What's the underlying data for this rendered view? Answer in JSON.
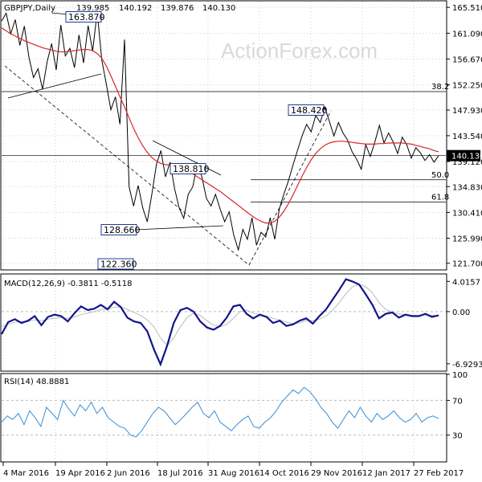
{
  "watermark": "ActionForex.com",
  "chart_data": [
    {
      "type": "line",
      "panel": "price",
      "title": "GBPJPY,Daily",
      "ohlc": [
        "139.985",
        "140.192",
        "139.876",
        "140.130"
      ],
      "y_ticks": [
        165.51,
        161.09,
        156.67,
        152.25,
        147.93,
        143.54,
        139.12,
        134.83,
        130.41,
        125.99,
        121.7
      ],
      "y_tick_labels": [
        "165.510",
        "161.090",
        "156.670",
        "152.250",
        "147.930",
        "143.540",
        "139.120",
        "134.830",
        "130.410",
        "125.990",
        "121.700"
      ],
      "ylim": [
        120.7,
        166.5
      ],
      "current_price": 140.13,
      "current_price_label": "140.130",
      "series": [
        {
          "name": "price",
          "color": "#000000",
          "values": [
            163.2,
            164.5,
            161.0,
            163.4,
            159.0,
            162.3,
            157.0,
            153.5,
            155.0,
            151.5,
            156.2,
            159.3,
            154.8,
            162.5,
            157.2,
            158.5,
            155.2,
            160.8,
            156.0,
            162.4,
            158.0,
            164.8,
            156.5,
            152.4,
            148.0,
            150.2,
            145.5,
            160.0,
            134.8,
            131.5,
            135.0,
            131.2,
            128.8,
            133.5,
            138.6,
            141.0,
            136.5,
            139.0,
            134.5,
            131.2,
            129.4,
            133.5,
            134.8,
            138.8,
            136.5,
            132.8,
            131.5,
            133.5,
            131.0,
            128.8,
            130.5,
            126.5,
            124.0,
            127.5,
            125.8,
            129.5,
            124.8,
            127.0,
            126.2,
            129.5,
            125.8,
            131.0,
            133.5,
            135.8,
            138.5,
            141.0,
            143.5,
            145.5,
            144.2,
            147.0,
            145.8,
            148.4,
            146.0,
            143.5,
            145.8,
            144.0,
            142.8,
            140.8,
            139.5,
            137.8,
            142.0,
            140.0,
            142.5,
            145.3,
            142.3,
            144.0,
            142.5,
            140.5,
            143.3,
            142.0,
            139.7,
            141.5,
            140.6,
            139.3,
            140.3,
            139.0,
            140.13
          ]
        },
        {
          "name": "MA",
          "color": "#d62728",
          "values": [
            162.0,
            161.5,
            161.0,
            160.6,
            160.2,
            159.8,
            159.5,
            159.2,
            158.9,
            158.6,
            158.4,
            158.2,
            158.0,
            157.9,
            157.9,
            158.0,
            158.1,
            158.2,
            158.3,
            158.3,
            158.1,
            157.6,
            156.8,
            155.5,
            153.8,
            152.0,
            150.2,
            148.5,
            146.6,
            144.8,
            143.2,
            141.8,
            140.7,
            139.8,
            139.2,
            138.8,
            138.6,
            138.5,
            138.4,
            138.2,
            137.9,
            137.5,
            137.0,
            136.5,
            136.0,
            135.5,
            135.0,
            134.5,
            134.0,
            133.4,
            132.8,
            132.2,
            131.6,
            131.0,
            130.4,
            129.8,
            129.3,
            128.9,
            128.6,
            128.6,
            128.9,
            129.6,
            130.6,
            131.9,
            133.4,
            135.0,
            136.6,
            138.1,
            139.4,
            140.5,
            141.3,
            141.9,
            142.3,
            142.5,
            142.6,
            142.6,
            142.5,
            142.4,
            142.3,
            142.2,
            142.1,
            142.1,
            142.1,
            142.2,
            142.2,
            142.3,
            142.3,
            142.3,
            142.3,
            142.2,
            142.1,
            141.9,
            141.7,
            141.5,
            141.3,
            141.0,
            140.8
          ]
        }
      ],
      "levels": [
        {
          "label": "38.2",
          "value": 151.1
        },
        {
          "label": "50.0",
          "value": 136.0
        },
        {
          "label": "61.8",
          "value": 132.2
        }
      ],
      "annotations": [
        {
          "text": "163.870",
          "value": 163.87
        },
        {
          "text": "148.420",
          "value": 148.42
        },
        {
          "text": "138.810",
          "value": 138.81
        },
        {
          "text": "128.660",
          "value": 128.66
        },
        {
          "text": "122.360",
          "value": 122.36
        }
      ],
      "x_tick_labels": [
        "4 Mar 2016",
        "19 Apr 2016",
        "2 Jun 2016",
        "18 Jul 2016",
        "31 Aug 2016",
        "14 Oct 2016",
        "29 Nov 2016",
        "12 Jan 2017",
        "27 Feb 2017"
      ],
      "grid": true
    },
    {
      "type": "line",
      "panel": "macd",
      "title": "MACD(12,26,9) -0.3811 -0.5118",
      "y_tick_labels": [
        "4.0157",
        "0.00",
        "-6.9293"
      ],
      "y_ticks": [
        4.0157,
        0.0,
        -6.9293
      ],
      "ylim": [
        -7.8,
        4.9
      ],
      "series": [
        {
          "name": "MACD",
          "color": "#14148c",
          "values": [
            -3.0,
            -1.4,
            -1.0,
            -1.5,
            -1.2,
            -0.6,
            -1.8,
            -0.7,
            -0.4,
            -0.6,
            -1.3,
            -0.2,
            0.7,
            0.2,
            0.4,
            0.9,
            0.3,
            1.3,
            0.6,
            -0.8,
            -1.3,
            -1.5,
            -2.6,
            -5.0,
            -7.0,
            -4.5,
            -1.5,
            0.2,
            0.5,
            0.0,
            -1.3,
            -2.1,
            -2.4,
            -1.9,
            -0.8,
            0.7,
            0.9,
            -0.3,
            -0.9,
            -0.4,
            -0.7,
            -1.5,
            -1.2,
            -1.9,
            -1.7,
            -1.2,
            -0.9,
            -1.6,
            -0.6,
            0.3,
            1.6,
            2.9,
            4.3,
            4.0,
            3.6,
            2.3,
            0.9,
            -0.9,
            -0.3,
            -0.1,
            -0.8,
            -0.4,
            -0.6,
            -0.6,
            -0.3,
            -0.7,
            -0.5
          ]
        },
        {
          "name": "Signal",
          "color": "#bbbbbb",
          "values": [
            -2.0,
            -1.7,
            -1.4,
            -1.3,
            -1.3,
            -1.1,
            -1.2,
            -1.0,
            -0.9,
            -0.8,
            -0.9,
            -0.7,
            -0.4,
            -0.2,
            0.0,
            0.3,
            0.3,
            0.6,
            0.6,
            0.3,
            -0.1,
            -0.5,
            -1.1,
            -2.0,
            -3.5,
            -4.5,
            -3.5,
            -2.0,
            -0.8,
            -0.2,
            -0.5,
            -1.2,
            -1.8,
            -2.0,
            -1.7,
            -0.9,
            0.0,
            0.2,
            -0.2,
            -0.4,
            -0.6,
            -0.9,
            -1.1,
            -1.4,
            -1.6,
            -1.5,
            -1.2,
            -1.2,
            -1.0,
            -0.6,
            0.2,
            1.2,
            2.4,
            3.3,
            3.6,
            3.3,
            2.5,
            1.2,
            0.3,
            -0.1,
            -0.3,
            -0.4,
            -0.5,
            -0.5,
            -0.4,
            -0.5,
            -0.5
          ]
        }
      ],
      "grid": true
    },
    {
      "type": "line",
      "panel": "rsi",
      "title": "RSI(14) 48.8881",
      "y_tick_labels": [
        "100",
        "70",
        "30",
        "0"
      ],
      "y_ticks": [
        100,
        70,
        30,
        0
      ],
      "ylim": [
        0,
        100
      ],
      "series": [
        {
          "name": "RSI",
          "color": "#3a8fd6",
          "values": [
            45,
            52,
            48,
            55,
            42,
            58,
            50,
            40,
            62,
            55,
            48,
            70,
            60,
            52,
            65,
            58,
            68,
            55,
            62,
            50,
            45,
            40,
            38,
            30,
            28,
            35,
            45,
            55,
            62,
            58,
            50,
            42,
            48,
            55,
            62,
            68,
            55,
            50,
            58,
            45,
            40,
            35,
            42,
            48,
            52,
            40,
            38,
            45,
            50,
            58,
            68,
            75,
            82,
            78,
            85,
            80,
            72,
            62,
            55,
            45,
            38,
            48,
            58,
            50,
            62,
            52,
            45,
            55,
            48,
            52,
            58,
            50,
            45,
            48,
            55,
            45,
            50,
            52,
            49
          ]
        }
      ],
      "grid": true
    }
  ]
}
